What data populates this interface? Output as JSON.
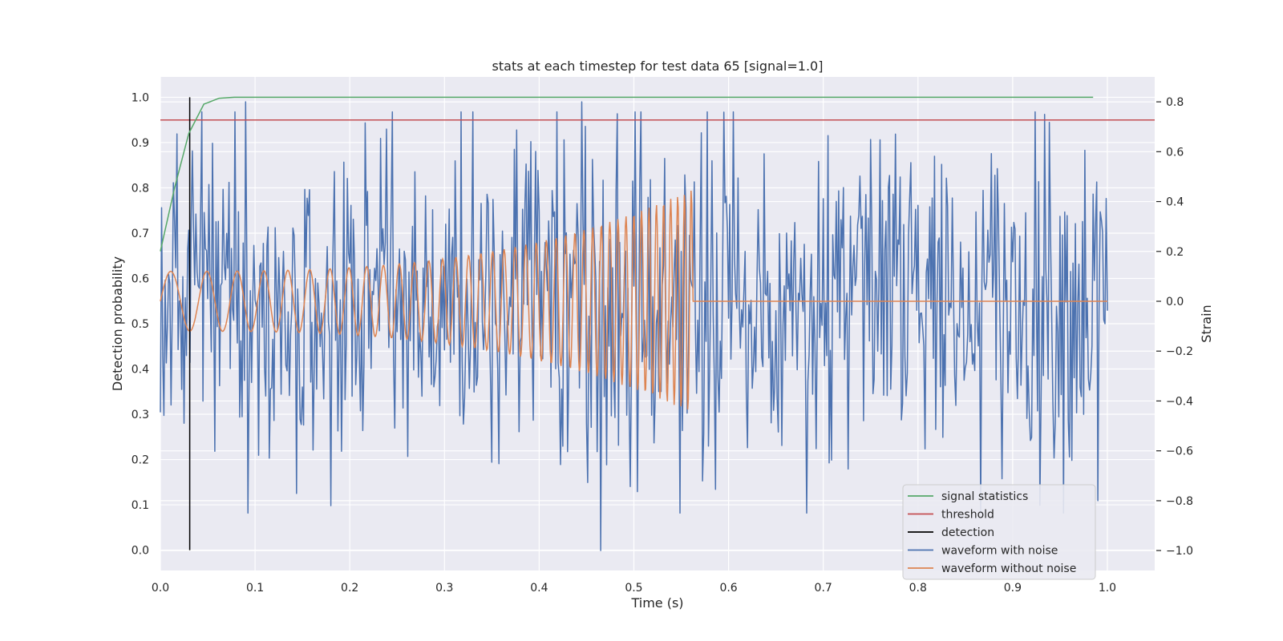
{
  "chart_data": {
    "type": "line",
    "title": "stats at each timestep for test data 65 [signal=1.0]",
    "xlabel": "Time (s)",
    "ylabel_left": "Detection probability",
    "ylabel_right": "Strain",
    "xlim": [
      0.0,
      1.05
    ],
    "ylim_left": [
      -0.045,
      1.045
    ],
    "ylim_right": [
      -1.08,
      0.9
    ],
    "x_ticks": [
      "0.0",
      "0.1",
      "0.2",
      "0.3",
      "0.4",
      "0.5",
      "0.6",
      "0.7",
      "0.8",
      "0.9",
      "1.0"
    ],
    "y_left_ticks": [
      "0.0",
      "0.1",
      "0.2",
      "0.3",
      "0.4",
      "0.5",
      "0.6",
      "0.7",
      "0.8",
      "0.9",
      "1.0"
    ],
    "y_right_ticks": [
      "−1.0",
      "−0.8",
      "−0.6",
      "−0.4",
      "−0.2",
      "0.0",
      "0.2",
      "0.4",
      "0.6",
      "0.8"
    ],
    "grid": true,
    "legend_position": "lower-right",
    "legend": [
      {
        "label": "signal statistics",
        "color": "#55a868"
      },
      {
        "label": "threshold",
        "color": "#c44e52"
      },
      {
        "label": "detection",
        "color": "#000000"
      },
      {
        "label": "waveform with noise",
        "color": "#4c72b0"
      },
      {
        "label": "waveform without noise",
        "color": "#dd8452"
      }
    ],
    "series": [
      {
        "name": "signal statistics",
        "axis": "left",
        "color": "#55a868",
        "x": [
          0.0,
          0.015,
          0.03,
          0.046,
          0.05,
          0.062,
          0.078,
          0.1,
          0.985
        ],
        "y": [
          0.66,
          0.8,
          0.92,
          0.985,
          0.988,
          0.998,
          1.0,
          1.0,
          1.0
        ]
      },
      {
        "name": "threshold",
        "axis": "left",
        "color": "#c44e52",
        "x": [
          0.0,
          1.05
        ],
        "y": [
          0.95,
          0.95
        ]
      },
      {
        "name": "detection",
        "axis": "left",
        "color": "#000000",
        "x": [
          0.031,
          0.031
        ],
        "y": [
          0.0,
          1.0
        ]
      },
      {
        "name": "waveform with noise",
        "axis": "right",
        "color": "#4c72b0",
        "x_range": [
          0.0,
          1.0
        ],
        "samples": 801,
        "amplitude_range": [
          -1.0,
          0.8
        ],
        "y_peaks": [
          {
            "x": 0.09,
            "y": 0.8
          },
          {
            "x": 0.445,
            "y": 0.8
          },
          {
            "x": 0.934,
            "y": 0.75
          },
          {
            "x": 0.465,
            "y": -1.0
          },
          {
            "x": 0.18,
            "y": -0.82
          },
          {
            "x": 0.99,
            "y": -0.8
          }
        ]
      },
      {
        "name": "waveform without noise",
        "axis": "right",
        "color": "#dd8452",
        "x_range": [
          0.0,
          1.0
        ],
        "chirp_end": 0.562,
        "amplitude_start": 0.12,
        "amplitude_end": 0.45,
        "y_after_end": 0.0
      }
    ]
  }
}
